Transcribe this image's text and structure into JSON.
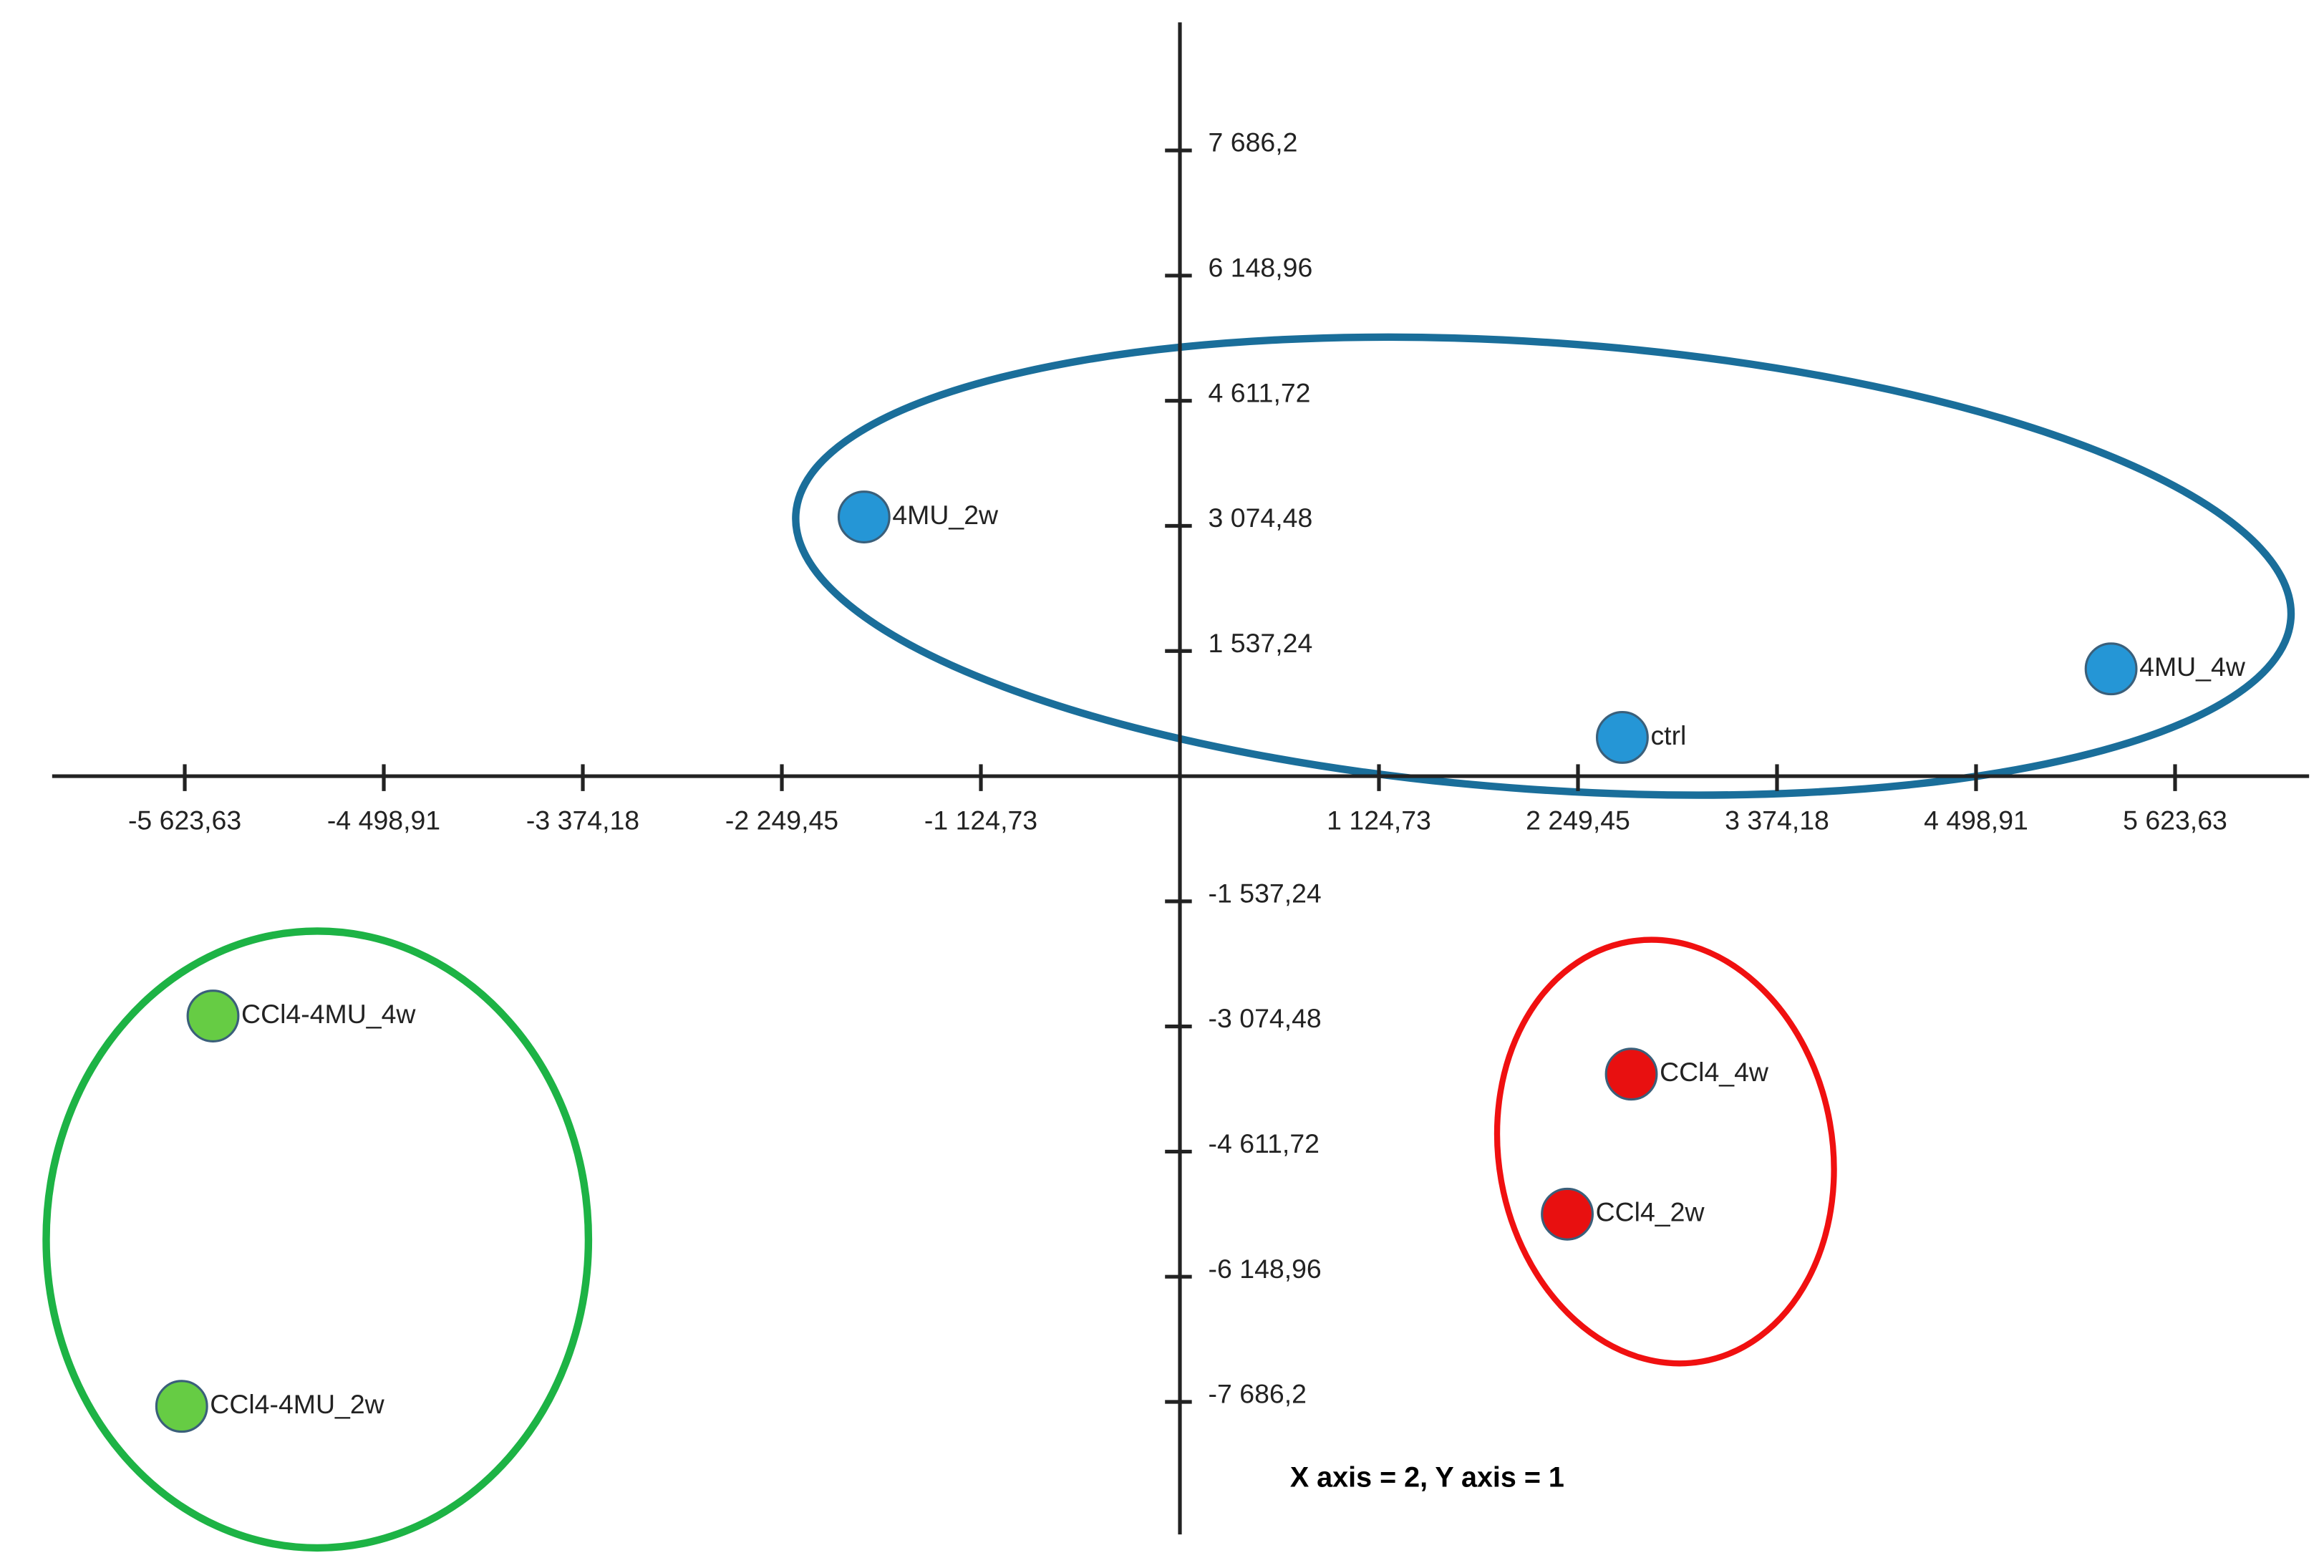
{
  "chart_data": {
    "type": "scatter",
    "annotation": "X axis = 2, Y axis = 1",
    "xlim": [
      -6373,
      6381
    ],
    "ylim": [
      -9315,
      9260
    ],
    "xticks": [
      {
        "value": -5623.63,
        "label": "-5 623,63"
      },
      {
        "value": -4498.91,
        "label": "-4 498,91"
      },
      {
        "value": -3374.18,
        "label": "-3 374,18"
      },
      {
        "value": -2249.45,
        "label": "-2 249,45"
      },
      {
        "value": -1124.73,
        "label": "-1 124,73"
      },
      {
        "value": 1124.73,
        "label": "1 124,73"
      },
      {
        "value": 2249.45,
        "label": "2 249,45"
      },
      {
        "value": 3374.18,
        "label": "3 374,18"
      },
      {
        "value": 4498.91,
        "label": "4 498,91"
      },
      {
        "value": 5623.63,
        "label": "5 623,63"
      }
    ],
    "yticks": [
      {
        "value": 7686.2,
        "label": "7 686,2"
      },
      {
        "value": 6148.96,
        "label": "6 148,96"
      },
      {
        "value": 4611.72,
        "label": "4 611,72"
      },
      {
        "value": 3074.48,
        "label": "3 074,48"
      },
      {
        "value": 1537.24,
        "label": "1 537,24"
      },
      {
        "value": -1537.24,
        "label": "-1 537,24"
      },
      {
        "value": -3074.48,
        "label": "-3 074,48"
      },
      {
        "value": -4611.72,
        "label": "-4 611,72"
      },
      {
        "value": -6148.96,
        "label": "-6 148,96"
      },
      {
        "value": -7686.2,
        "label": "-7 686,2"
      }
    ],
    "labels": [
      "4MU_2w",
      "4MU_4w",
      "ctrl",
      "CCl4_4w",
      "CCl4_2w",
      "CCl4-4MU_4w",
      "CCl4-4MU_2w"
    ],
    "x": [
      -1785,
      5262,
      2500,
      2551,
      2189,
      -5464,
      -5641
    ],
    "y": [
      3184,
      1318,
      476,
      -3660,
      -5380,
      -2946,
      -7741
    ],
    "colors": [
      "#2596d6",
      "#2596d6",
      "#2596d6",
      "#e81010",
      "#e81010",
      "#66cc44",
      "#66cc44"
    ]
  }
}
